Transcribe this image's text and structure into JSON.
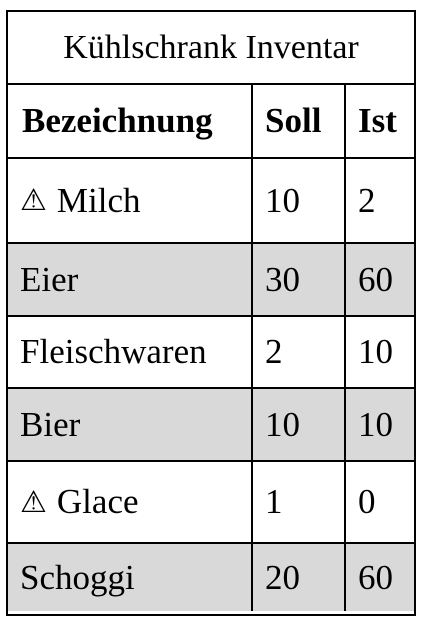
{
  "title": "Kühlschrank Inventar",
  "headers": {
    "name": "Bezeichnung",
    "target": "Soll",
    "actual": "Ist"
  },
  "warning_icon": "⚠",
  "rows": [
    {
      "warning": true,
      "name": "Milch",
      "target": "10",
      "actual": "2",
      "shaded": false
    },
    {
      "warning": false,
      "name": "Eier",
      "target": "30",
      "actual": "60",
      "shaded": true
    },
    {
      "warning": false,
      "name": "Fleischwaren",
      "target": "2",
      "actual": "10",
      "shaded": false
    },
    {
      "warning": false,
      "name": "Bier",
      "target": "10",
      "actual": "10",
      "shaded": true
    },
    {
      "warning": true,
      "name": "Glace",
      "target": "1",
      "actual": "0",
      "shaded": false
    },
    {
      "warning": false,
      "name": "Schoggi",
      "target": "20",
      "actual": "60",
      "shaded": true
    }
  ],
  "colors": {
    "shade": "#d9d9d9",
    "border": "#000000"
  }
}
